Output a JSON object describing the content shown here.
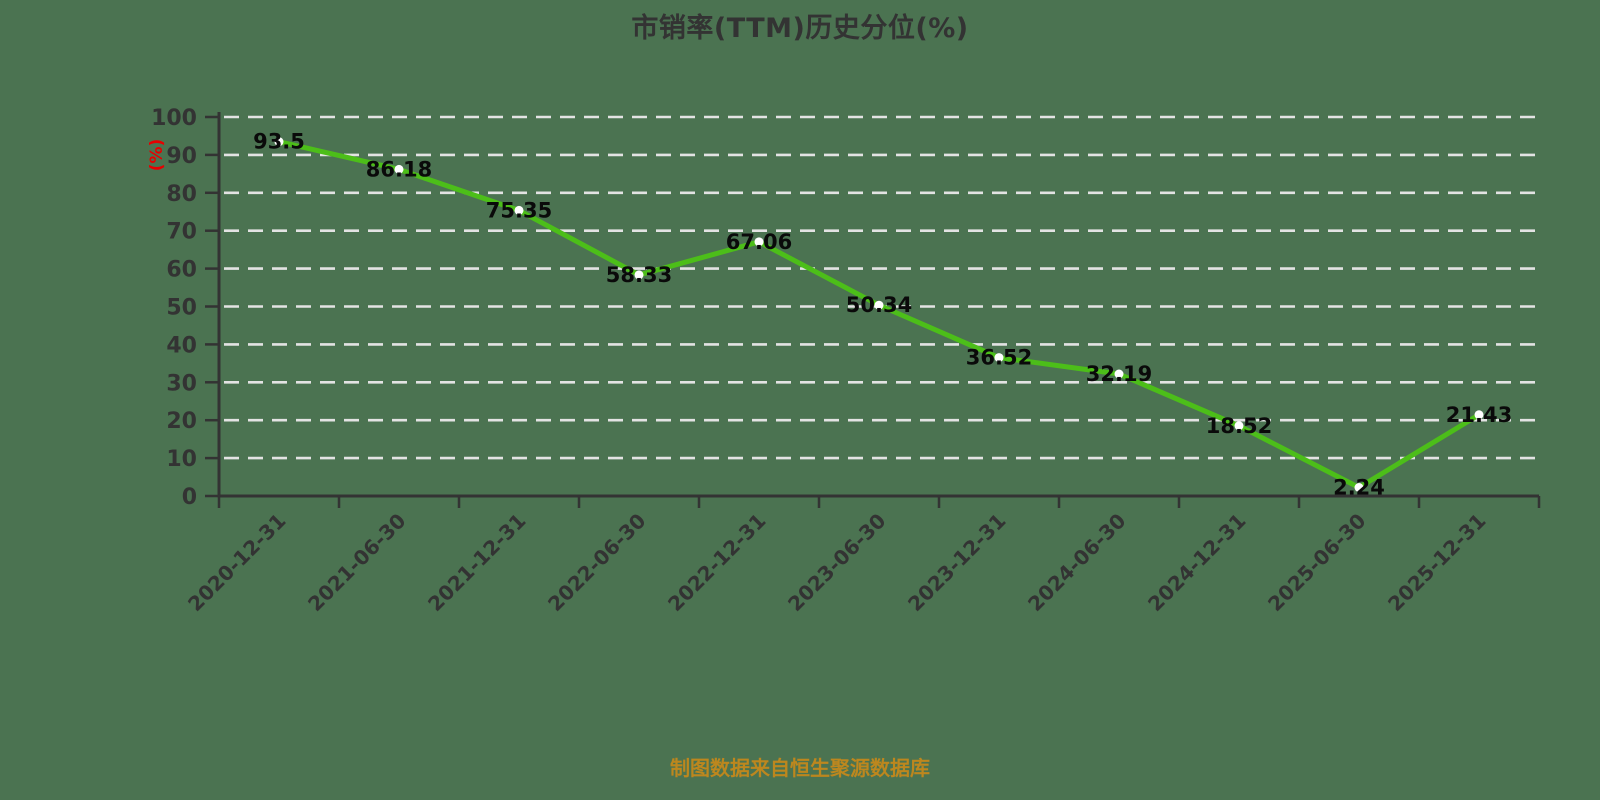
{
  "page": {
    "background_color": "#4b7351"
  },
  "chart_data": {
    "type": "line",
    "title": "市销率(TTM)历史分位(%)",
    "ylabel": "(%)",
    "categories": [
      "2020-12-31",
      "2021-06-30",
      "2021-12-31",
      "2022-06-30",
      "2022-12-31",
      "2023-06-30",
      "2023-12-31",
      "2024-06-30",
      "2024-12-31",
      "2025-06-30",
      "2025-12-31"
    ],
    "values": [
      93.5,
      86.18,
      75.35,
      58.33,
      67.06,
      50.34,
      36.52,
      32.19,
      18.52,
      2.24,
      21.43
    ],
    "ylim": [
      0,
      100
    ],
    "y_tick_step": 10,
    "grid": true,
    "legend": "none",
    "line_color": "#4cbe19",
    "marker_color": "#ffffff",
    "point_label_color": "#0a0a0a",
    "axis_color": "#333333",
    "grid_color": "#e3e3e3",
    "tick_label_color": "#333333",
    "title_color": "#333333",
    "ylabel_color": "#e60000"
  },
  "footer": {
    "caption": "制图数据来自恒生聚源数据库",
    "color": "#bd871e"
  }
}
